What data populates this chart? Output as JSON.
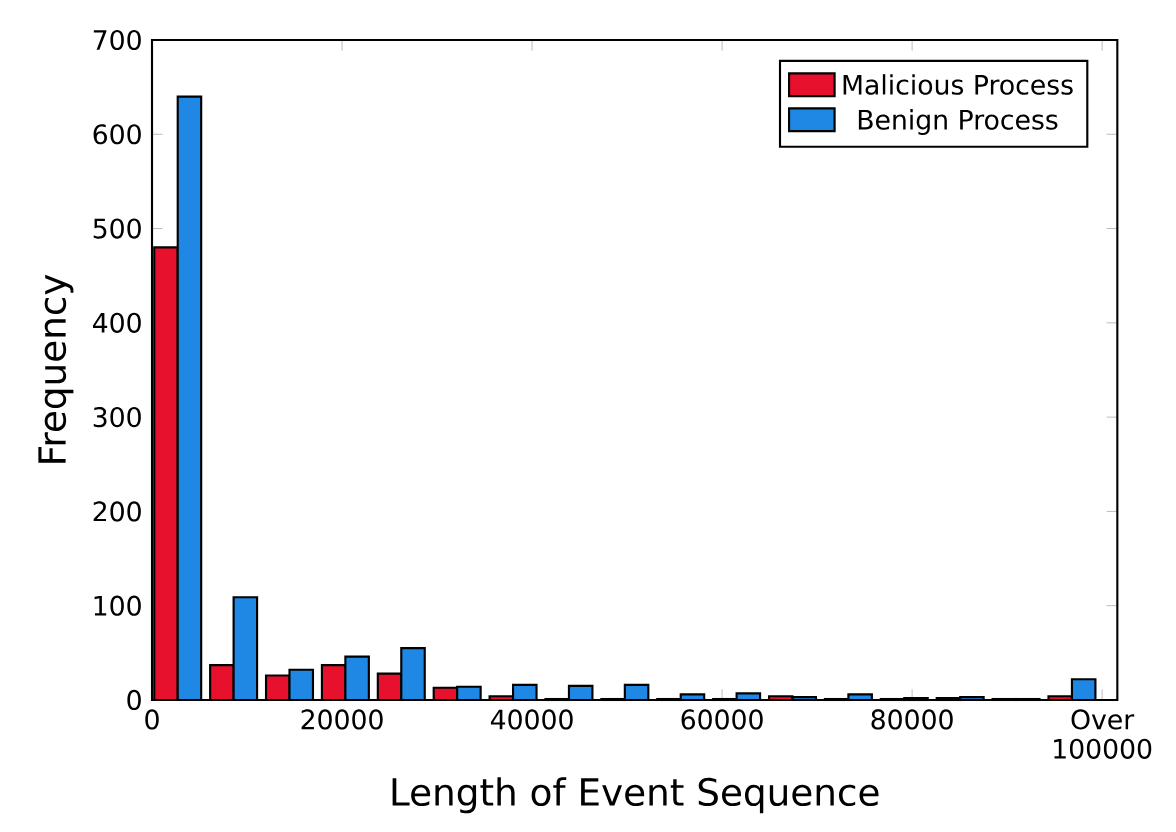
{
  "chart_data": {
    "type": "histogram",
    "xlabel": "Length of Event Sequence",
    "ylabel": "Frequency",
    "bins": [
      0,
      5882,
      11765,
      17647,
      23529,
      29412,
      35294,
      41176,
      47059,
      52941,
      58824,
      64706,
      70588,
      76471,
      82353,
      88235,
      94118,
      100000
    ],
    "series": [
      {
        "name": "Malicious Process",
        "color": "#e8112d",
        "values": [
          480,
          37,
          26,
          37,
          28,
          13,
          4,
          1,
          1,
          1,
          1,
          4,
          1,
          1,
          2,
          1,
          4
        ]
      },
      {
        "name": "Benign Process",
        "color": "#1f88e5",
        "values": [
          640,
          109,
          32,
          46,
          55,
          14,
          16,
          15,
          16,
          6,
          7,
          3,
          6,
          2,
          3,
          1,
          22
        ]
      }
    ],
    "xlim": [
      0,
      101600
    ],
    "ylim": [
      0,
      700
    ],
    "xticks": [
      0,
      20000,
      40000,
      60000,
      80000,
      {
        "value": 100000,
        "label": "Over 100000"
      }
    ],
    "yticks": [
      0,
      100,
      200,
      300,
      400,
      500,
      600,
      700
    ],
    "legend": "top right"
  }
}
